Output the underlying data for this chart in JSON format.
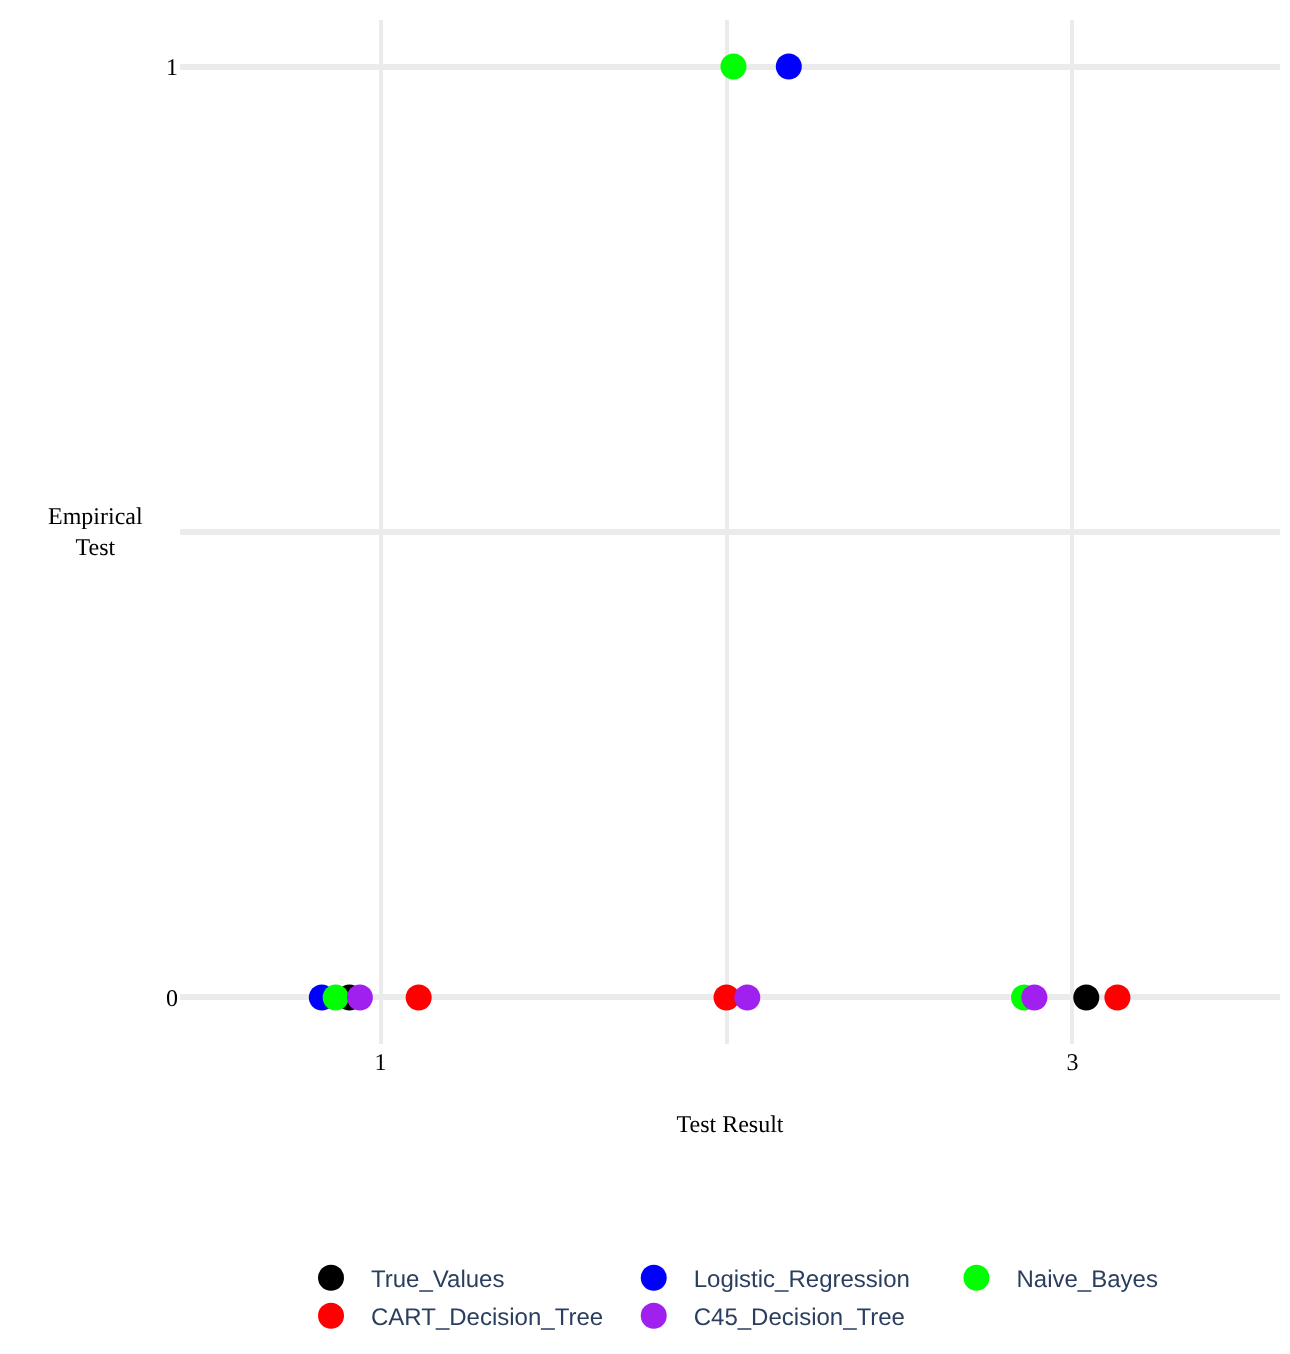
{
  "chart_data": {
    "type": "scatter",
    "xlabel": "Test Result",
    "ylabel": "Empirical Test",
    "series": [
      {
        "name": "True_Values",
        "color": "#000000",
        "x": [
          0.91,
          3.04
        ],
        "values": [
          0,
          0
        ]
      },
      {
        "name": "Logistic_Regression",
        "color": "#0000ff",
        "x": [
          0.83,
          2.18
        ],
        "values": [
          0,
          1
        ]
      },
      {
        "name": "Naive_Bayes",
        "color": "#00ff00",
        "x": [
          0.87,
          2.02,
          2.86
        ],
        "values": [
          0,
          1,
          0
        ]
      },
      {
        "name": "CART_Decision_Tree",
        "color": "#ff0000",
        "x": [
          1.11,
          2.0,
          3.13
        ],
        "values": [
          0,
          0,
          0
        ]
      },
      {
        "name": "C45_Decision_Tree",
        "color": "#a020f0",
        "x": [
          0.94,
          2.06,
          2.89
        ],
        "values": [
          0,
          0,
          0
        ]
      }
    ],
    "xlim": [
      0.42,
      3.6
    ],
    "xticks": [
      1,
      {
        "value": 2,
        "label": null
      },
      3
    ],
    "ylim": [
      -0.05,
      1.05
    ],
    "yticks": [
      0,
      {
        "value": 0.5,
        "label": null
      },
      1
    ],
    "grid": true,
    "legend": "bottom",
    "marker": "circle"
  }
}
